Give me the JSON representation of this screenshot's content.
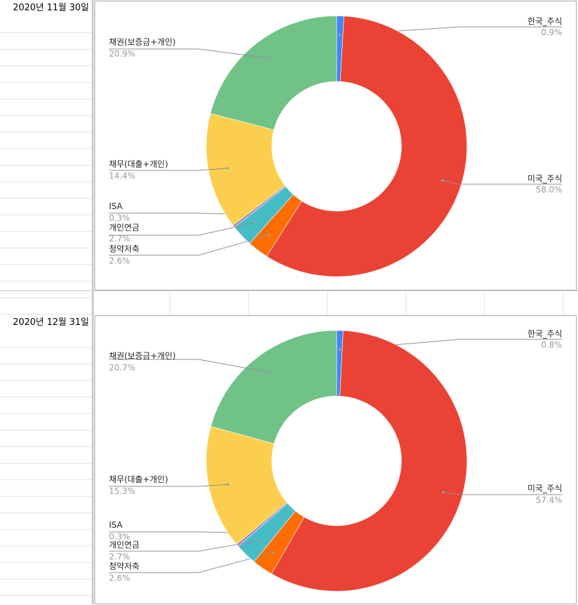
{
  "sheet": {
    "dates": [
      "2020년 11월 30일",
      "2020년 12월 31일"
    ]
  },
  "chart_data": [
    {
      "type": "pie",
      "donut": true,
      "legend": "labels-on-chart",
      "slices": [
        {
          "name": "한국_주식",
          "value": 0.9,
          "label": "0.9%",
          "color": "#4285f4"
        },
        {
          "name": "미국_주식",
          "value": 58.0,
          "label": "58.0%",
          "color": "#ea4335"
        },
        {
          "name": "청약저축",
          "value": 2.6,
          "label": "2.6%",
          "color": "#ff6d01"
        },
        {
          "name": "개인연금",
          "value": 2.7,
          "label": "2.7%",
          "color": "#46bdc6"
        },
        {
          "name": "ISA",
          "value": 0.3,
          "label": "0.3%",
          "color": "#ab7ac6"
        },
        {
          "name": "채무(대출+개인)",
          "value": 14.4,
          "label": "14.4%",
          "color": "#fbcf4d"
        },
        {
          "name": "채권(보증금+개인)",
          "value": 20.9,
          "label": "20.9%",
          "color": "#71c287"
        }
      ]
    },
    {
      "type": "pie",
      "donut": true,
      "legend": "labels-on-chart",
      "slices": [
        {
          "name": "한국_주식",
          "value": 0.8,
          "label": "0.8%",
          "color": "#4285f4"
        },
        {
          "name": "미국_주식",
          "value": 57.4,
          "label": "57.4%",
          "color": "#ea4335"
        },
        {
          "name": "청약저축",
          "value": 2.6,
          "label": "2.6%",
          "color": "#ff6d01"
        },
        {
          "name": "개인연금",
          "value": 2.7,
          "label": "2.7%",
          "color": "#46bdc6"
        },
        {
          "name": "ISA",
          "value": 0.3,
          "label": "0.3%",
          "color": "#ab7ac6"
        },
        {
          "name": "채무(대출+개인)",
          "value": 15.3,
          "label": "15.3%",
          "color": "#fbcf4d"
        },
        {
          "name": "채권(보증금+개인)",
          "value": 20.7,
          "label": "20.7%",
          "color": "#71c287"
        }
      ]
    }
  ]
}
